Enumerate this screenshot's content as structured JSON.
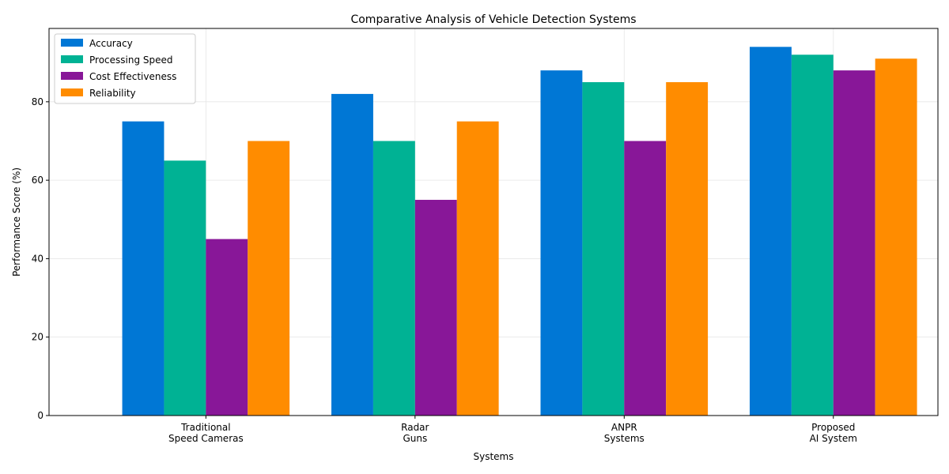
{
  "chart_data": {
    "type": "bar",
    "title": "Comparative Analysis of Vehicle Detection Systems",
    "xlabel": "Systems",
    "ylabel": "Performance Score (%)",
    "categories": [
      [
        "Traditional",
        "Speed Cameras"
      ],
      [
        "Radar",
        "Guns"
      ],
      [
        "ANPR",
        "Systems"
      ],
      [
        "Proposed",
        "AI System"
      ]
    ],
    "series": [
      {
        "name": "Accuracy",
        "color": "#0077d5",
        "values": [
          75,
          82,
          88,
          94
        ]
      },
      {
        "name": "Processing Speed",
        "color": "#00b294",
        "values": [
          65,
          70,
          85,
          92
        ]
      },
      {
        "name": "Cost Effectiveness",
        "color": "#881798",
        "values": [
          45,
          55,
          70,
          88
        ]
      },
      {
        "name": "Reliability",
        "color": "#ff8c00",
        "values": [
          70,
          75,
          85,
          91
        ]
      }
    ],
    "ylim": [
      0,
      98.7
    ],
    "yticks": [
      0,
      20,
      40,
      60,
      80
    ],
    "grid": true,
    "legend_position": "top-left"
  }
}
